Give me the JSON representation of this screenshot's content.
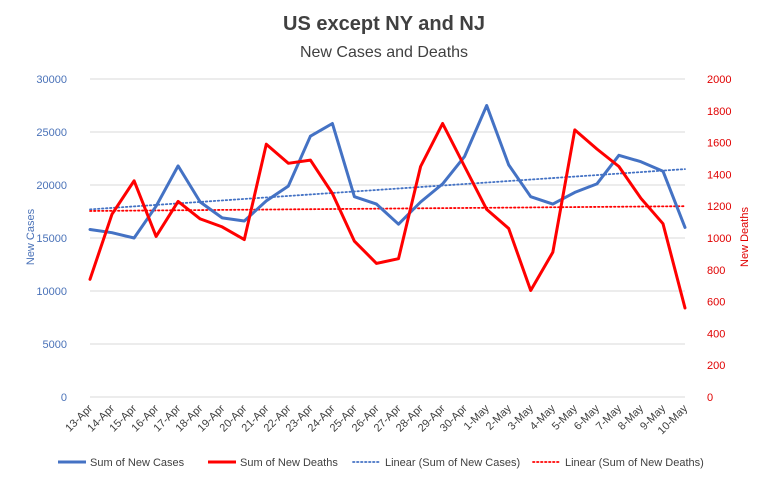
{
  "chart_data": {
    "type": "line",
    "title": "US except NY and NJ",
    "subtitle": "New Cases and Deaths",
    "categories": [
      "13-Apr",
      "14-Apr",
      "15-Apr",
      "16-Apr",
      "17-Apr",
      "18-Apr",
      "19-Apr",
      "20-Apr",
      "21-Apr",
      "22-Apr",
      "23-Apr",
      "24-Apr",
      "25-Apr",
      "26-Apr",
      "27-Apr",
      "28-Apr",
      "29-Apr",
      "30-Apr",
      "1-May",
      "2-May",
      "3-May",
      "4-May",
      "5-May",
      "6-May",
      "7-May",
      "8-May",
      "9-May",
      "10-May"
    ],
    "ylabel_left": "New Cases",
    "ylabel_right": "New Deaths",
    "ylim_left": [
      0,
      30000
    ],
    "ylim_right": [
      0,
      2000
    ],
    "yticks_left": [
      "0",
      "5000",
      "10000",
      "15000",
      "20000",
      "25000",
      "30000"
    ],
    "yticks_right": [
      "0",
      "200",
      "400",
      "600",
      "800",
      "1000",
      "1200",
      "1400",
      "1600",
      "1800",
      "2000"
    ],
    "series": [
      {
        "name": "Sum of New Cases",
        "axis": "left",
        "color": "#4472c4",
        "values": [
          15800,
          15500,
          15000,
          18000,
          21800,
          18400,
          16900,
          16600,
          18500,
          19900,
          24600,
          25800,
          18900,
          18200,
          16300,
          18400,
          20100,
          22700,
          27500,
          21900,
          18900,
          18200,
          19300,
          20100,
          22800,
          22200,
          21300,
          16000
        ]
      },
      {
        "name": "Sum of New Deaths",
        "axis": "right",
        "color": "#ff0000",
        "values": [
          740,
          1150,
          1360,
          1010,
          1230,
          1120,
          1070,
          990,
          1590,
          1470,
          1490,
          1280,
          980,
          840,
          870,
          1450,
          1720,
          1450,
          1180,
          1060,
          670,
          910,
          1680,
          1560,
          1450,
          1250,
          1090,
          560
        ]
      }
    ],
    "trendlines": [
      {
        "name": "Linear (Sum of New Cases)",
        "axis": "left",
        "color": "#4472c4",
        "start": 17700,
        "end": 21500
      },
      {
        "name": "Linear (Sum of New Deaths)",
        "axis": "right",
        "color": "#ff0000",
        "start": 1170,
        "end": 1200
      }
    ],
    "legend_position": "bottom",
    "grid": true
  }
}
